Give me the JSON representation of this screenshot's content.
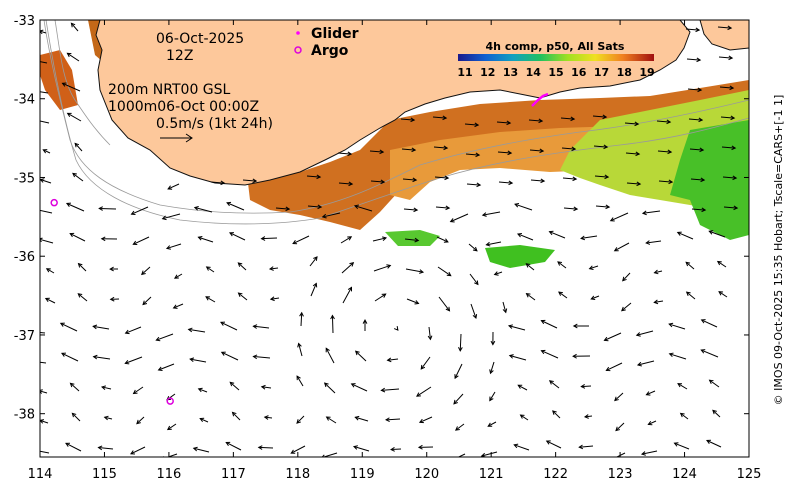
{
  "map": {
    "date": "06-Oct-2025",
    "hour": "12Z",
    "info_line1": "200m  NRT00 GSL",
    "info_line2": "1000m06-Oct 00:00Z",
    "scale_label": "0.5m/s (1kt 24h)",
    "legend_glider": "Glider",
    "legend_argo": "Argo",
    "colorbar_title": "4h comp, p50, All Sats",
    "colorbar_ticks": [
      "11",
      "12",
      "13",
      "14",
      "15",
      "16",
      "17",
      "18",
      "19"
    ],
    "side_caption": "© IMOS 09-Oct-2025 15:35 Hobart; Tscale=CARS+[-1 1]",
    "x_ticks": [
      "114",
      "115",
      "116",
      "117",
      "118",
      "119",
      "120",
      "121",
      "122",
      "123",
      "124",
      "125"
    ],
    "y_ticks": [
      "-33",
      "-34",
      "-35",
      "-36",
      "-37",
      "-38"
    ],
    "x_range": [
      114,
      125
    ],
    "y_range": [
      -38.55,
      -33
    ],
    "argo_floats": [
      {
        "lon": 114.22,
        "lat": -35.32
      },
      {
        "lon": 116.02,
        "lat": -37.84
      }
    ],
    "glider_track_end": {
      "lon": 121.72,
      "lat": -34.08
    },
    "colors": {
      "land": "#fdc89b",
      "coast": "#111111",
      "warm": "#d2691e",
      "mid": "#f0a040",
      "cool": "#a8d830",
      "green": "#40c020",
      "glider": "#ff00ff",
      "argo": "#dd00dd"
    }
  }
}
